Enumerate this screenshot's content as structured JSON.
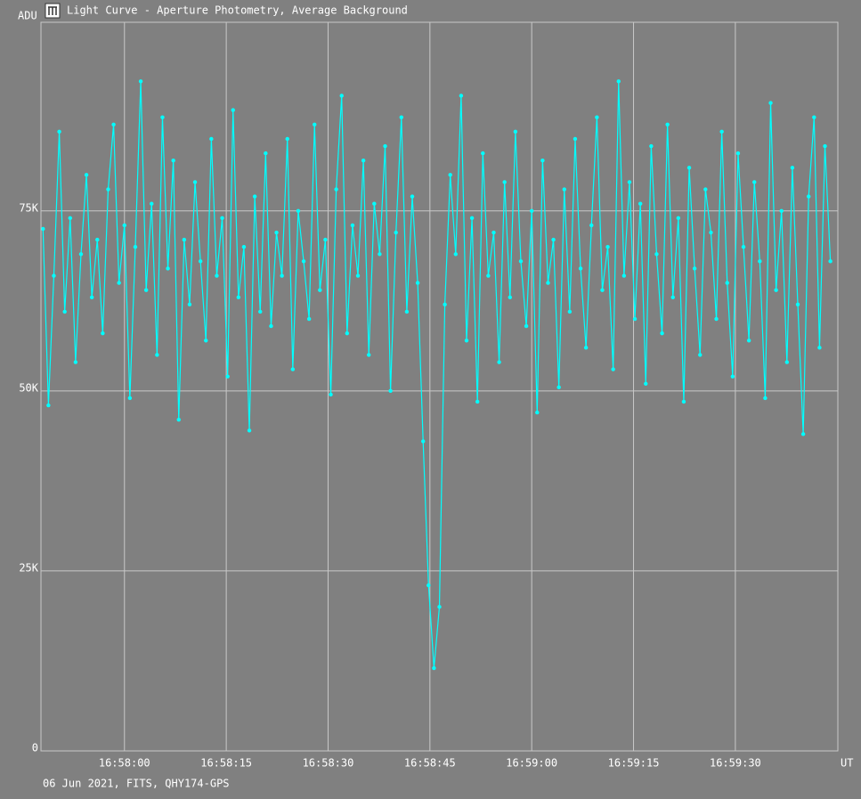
{
  "chart_data": {
    "type": "line",
    "title": "Light Curve - Aperture Photometry, Average Background",
    "ylabel": "ADU",
    "xlabel": "UT",
    "footer": "06 Jun 2021, FITS, QHY174-GPS",
    "color": "#00ffff",
    "grid": true,
    "xlim": [
      60647.7,
      60765.1
    ],
    "ylim": [
      0,
      101200
    ],
    "xticks": [
      {
        "value": 60660,
        "label": "16:58:00"
      },
      {
        "value": 60675,
        "label": "16:58:15"
      },
      {
        "value": 60690,
        "label": "16:58:30"
      },
      {
        "value": 60705,
        "label": "16:58:45"
      },
      {
        "value": 60720,
        "label": "16:59:00"
      },
      {
        "value": 60735,
        "label": "16:59:15"
      },
      {
        "value": 60750,
        "label": "16:59:30"
      }
    ],
    "yticks": [
      0,
      {
        "value": 25000,
        "label": "25K"
      },
      {
        "value": 50000,
        "label": "50K"
      },
      {
        "value": 75000,
        "label": "75K"
      }
    ],
    "x": [
      60648,
      60648.8,
      60649.6,
      60650.4,
      60651.2,
      60652,
      60652.8,
      60653.6,
      60654.4,
      60655.2,
      60656,
      60656.8,
      60657.6,
      60658.4,
      60659.2,
      60660,
      60660.8,
      60661.6,
      60662.4,
      60663.2,
      60664,
      60664.8,
      60665.6,
      60666.4,
      60667.2,
      60668,
      60668.8,
      60669.6,
      60670.4,
      60671.2,
      60672,
      60672.8,
      60673.6,
      60674.4,
      60675.2,
      60676,
      60676.8,
      60677.6,
      60678.4,
      60679.2,
      60680,
      60680.8,
      60681.6,
      60682.4,
      60683.2,
      60684,
      60684.8,
      60685.6,
      60686.4,
      60687.2,
      60688,
      60688.8,
      60689.6,
      60690.4,
      60691.2,
      60692,
      60692.8,
      60693.6,
      60694.4,
      60695.2,
      60696,
      60696.8,
      60697.6,
      60698.4,
      60699.2,
      60700,
      60700.8,
      60701.6,
      60702.4,
      60703.2,
      60704,
      60704.8,
      60705.6,
      60706.4,
      60707.2,
      60708,
      60708.8,
      60709.6,
      60710.4,
      60711.2,
      60712,
      60712.8,
      60713.6,
      60714.4,
      60715.2,
      60716,
      60716.8,
      60717.6,
      60718.4,
      60719.2,
      60720,
      60720.8,
      60721.6,
      60722.4,
      60723.2,
      60724,
      60724.8,
      60725.6,
      60726.4,
      60727.2,
      60728,
      60728.8,
      60729.6,
      60730.4,
      60731.2,
      60732,
      60732.8,
      60733.6,
      60734.4,
      60735.2,
      60736,
      60736.8,
      60737.6,
      60738.4,
      60739.2,
      60740,
      60740.8,
      60741.6,
      60742.4,
      60743.2,
      60744,
      60744.8,
      60745.6,
      60746.4,
      60747.2,
      60748,
      60748.8,
      60749.6,
      60750.4,
      60751.2,
      60752,
      60752.8,
      60753.6,
      60754.4,
      60755.2,
      60756,
      60756.8,
      60757.6,
      60758.4,
      60759.2,
      60760,
      60760.8,
      60761.6,
      60762.4,
      60763.2,
      60764
    ],
    "values": [
      72500,
      48000,
      66000,
      86000,
      61000,
      74000,
      54000,
      69000,
      80000,
      63000,
      71000,
      58000,
      78000,
      87000,
      65000,
      73000,
      49000,
      70000,
      93000,
      64000,
      76000,
      55000,
      88000,
      67000,
      82000,
      46000,
      71000,
      62000,
      79000,
      68000,
      57000,
      85000,
      66000,
      74000,
      52000,
      89000,
      63000,
      70000,
      44500,
      77000,
      61000,
      83000,
      59000,
      72000,
      66000,
      85000,
      53000,
      75000,
      68000,
      60000,
      87000,
      64000,
      71000,
      49500,
      78000,
      91000,
      58000,
      73000,
      66000,
      82000,
      55000,
      76000,
      69000,
      84000,
      50000,
      72000,
      88000,
      61000,
      77000,
      65000,
      43000,
      23000,
      11500,
      20000,
      62000,
      80000,
      69000,
      91000,
      57000,
      74000,
      48500,
      83000,
      66000,
      72000,
      54000,
      79000,
      63000,
      86000,
      68000,
      59000,
      75000,
      47000,
      82000,
      65000,
      71000,
      50500,
      78000,
      61000,
      85000,
      67000,
      56000,
      73000,
      88000,
      64000,
      70000,
      53000,
      93000,
      66000,
      79000,
      60000,
      76000,
      51000,
      84000,
      69000,
      58000,
      87000,
      63000,
      74000,
      48500,
      81000,
      67000,
      55000,
      78000,
      72000,
      60000,
      86000,
      65000,
      52000,
      83000,
      70000,
      57000,
      79000,
      68000,
      49000,
      90000,
      64000,
      75000,
      54000,
      81000,
      62000,
      44000,
      77000,
      88000,
      56000,
      84000,
      68000
    ]
  }
}
